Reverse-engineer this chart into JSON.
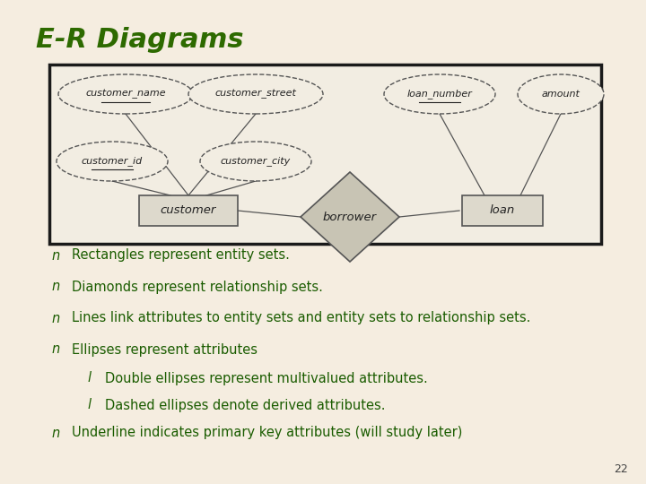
{
  "title": "E-R Diagrams",
  "title_color": "#2d6a00",
  "bg_color": "#f5ede0",
  "bullet_color": "#1a5c00",
  "bullet_char": "n",
  "sub_bullet_char": "l",
  "bullets": [
    "Rectangles represent entity sets.",
    "Diamonds represent relationship sets.",
    "Lines link attributes to entity sets and entity sets to relationship sets.",
    "Ellipses represent attributes"
  ],
  "sub_bullets": [
    "Double ellipses represent multivalued attributes.",
    "Dashed ellipses denote derived attributes."
  ],
  "last_bullet": "Underline indicates primary key attributes (will study later)",
  "page_number": "22"
}
